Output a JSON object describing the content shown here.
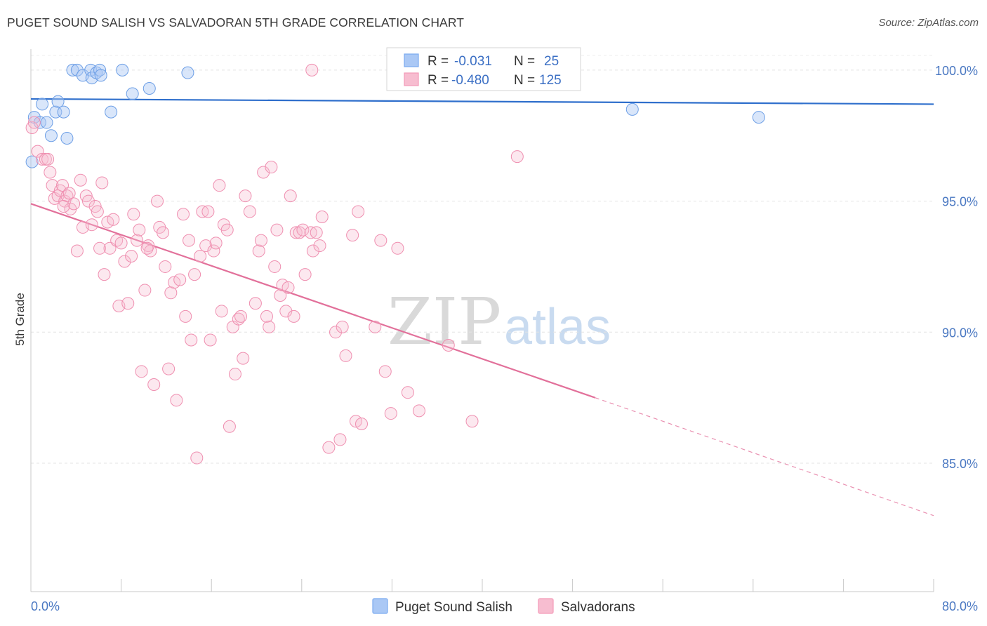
{
  "title": "PUGET SOUND SALISH VS SALVADORAN 5TH GRADE CORRELATION CHART",
  "source": "Source: ZipAtlas.com",
  "watermark": {
    "left": "ZIP",
    "right": "atlas"
  },
  "legend_top": {
    "rows": [
      {
        "r_label": "R =",
        "r_value": "-0.031",
        "n_label": "N =",
        "n_value": "25",
        "color": "#7aaaf0"
      },
      {
        "r_label": "R =",
        "r_value": "-0.480",
        "n_label": "N =",
        "n_value": "125",
        "color": "#f49ab8"
      }
    ]
  },
  "legend_bottom": [
    {
      "label": "Puget Sound Salish",
      "color": "#aac8f5"
    },
    {
      "label": "Salvadorans",
      "color": "#f7bdd0"
    }
  ],
  "chart_data": {
    "type": "scatter",
    "xlabel": "",
    "ylabel": "5th Grade",
    "xlim": [
      0,
      80
    ],
    "ylim": [
      80.1,
      100.8
    ],
    "x_tick_labels": [
      "0.0%",
      "80.0%"
    ],
    "y_ticks": [
      85,
      90,
      95,
      100
    ],
    "y_tick_labels": [
      "85.0%",
      "90.0%",
      "95.0%",
      "100.0%"
    ],
    "grid": true,
    "series": [
      {
        "name": "Puget Sound Salish",
        "color": "#7aaaf0",
        "points": [
          [
            0.1,
            96.5
          ],
          [
            0.3,
            98.2
          ],
          [
            0.8,
            98.0
          ],
          [
            1.0,
            98.7
          ],
          [
            1.4,
            98.0
          ],
          [
            1.8,
            97.5
          ],
          [
            2.2,
            98.4
          ],
          [
            2.4,
            98.8
          ],
          [
            2.9,
            98.4
          ],
          [
            3.2,
            97.4
          ],
          [
            3.7,
            100.0
          ],
          [
            4.1,
            100.0
          ],
          [
            4.6,
            99.8
          ],
          [
            5.3,
            100.0
          ],
          [
            5.4,
            99.7
          ],
          [
            5.8,
            99.9
          ],
          [
            6.1,
            100.0
          ],
          [
            6.2,
            99.8
          ],
          [
            7.1,
            98.4
          ],
          [
            8.1,
            100.0
          ],
          [
            9.0,
            99.1
          ],
          [
            10.5,
            99.3
          ],
          [
            13.9,
            99.9
          ],
          [
            53.3,
            98.5
          ],
          [
            64.5,
            98.2
          ]
        ],
        "trend": {
          "x": [
            0,
            80
          ],
          "y": [
            98.9,
            98.7
          ]
        }
      },
      {
        "name": "Salvadorans",
        "color": "#f07aa2",
        "points": [
          [
            0.1,
            97.8
          ],
          [
            0.3,
            98.0
          ],
          [
            0.6,
            96.9
          ],
          [
            1.0,
            96.6
          ],
          [
            1.3,
            96.6
          ],
          [
            1.7,
            96.1
          ],
          [
            1.9,
            95.6
          ],
          [
            2.1,
            95.1
          ],
          [
            2.4,
            95.2
          ],
          [
            2.6,
            95.4
          ],
          [
            2.8,
            95.6
          ],
          [
            3.0,
            95.0
          ],
          [
            3.2,
            95.2
          ],
          [
            3.4,
            95.3
          ],
          [
            3.5,
            94.7
          ],
          [
            3.8,
            94.9
          ],
          [
            4.1,
            93.1
          ],
          [
            4.4,
            95.8
          ],
          [
            4.6,
            94.0
          ],
          [
            4.9,
            95.2
          ],
          [
            5.1,
            95.0
          ],
          [
            5.4,
            94.1
          ],
          [
            5.7,
            94.8
          ],
          [
            5.9,
            94.6
          ],
          [
            6.1,
            93.2
          ],
          [
            6.3,
            95.7
          ],
          [
            6.5,
            92.2
          ],
          [
            6.8,
            94.2
          ],
          [
            7.0,
            93.2
          ],
          [
            7.3,
            94.3
          ],
          [
            7.6,
            93.5
          ],
          [
            7.8,
            91.0
          ],
          [
            8.0,
            93.4
          ],
          [
            8.3,
            92.7
          ],
          [
            8.6,
            91.1
          ],
          [
            8.9,
            92.9
          ],
          [
            9.1,
            94.5
          ],
          [
            9.4,
            93.5
          ],
          [
            9.6,
            93.9
          ],
          [
            9.8,
            88.5
          ],
          [
            10.1,
            91.6
          ],
          [
            10.4,
            93.3
          ],
          [
            10.6,
            93.1
          ],
          [
            10.9,
            88.0
          ],
          [
            11.2,
            95.0
          ],
          [
            11.4,
            94.0
          ],
          [
            11.7,
            93.8
          ],
          [
            11.9,
            92.5
          ],
          [
            12.2,
            88.6
          ],
          [
            12.4,
            91.5
          ],
          [
            12.7,
            91.9
          ],
          [
            12.9,
            87.4
          ],
          [
            13.2,
            92.0
          ],
          [
            13.5,
            94.5
          ],
          [
            13.7,
            90.6
          ],
          [
            14.0,
            93.5
          ],
          [
            14.2,
            89.7
          ],
          [
            14.5,
            92.2
          ],
          [
            14.7,
            85.2
          ],
          [
            15.0,
            92.9
          ],
          [
            15.2,
            94.6
          ],
          [
            15.5,
            93.3
          ],
          [
            15.7,
            94.6
          ],
          [
            15.9,
            89.7
          ],
          [
            16.2,
            93.1
          ],
          [
            16.4,
            93.4
          ],
          [
            16.7,
            95.6
          ],
          [
            16.9,
            90.8
          ],
          [
            17.1,
            94.1
          ],
          [
            17.4,
            93.9
          ],
          [
            17.6,
            86.4
          ],
          [
            17.9,
            90.2
          ],
          [
            18.1,
            88.4
          ],
          [
            18.4,
            90.5
          ],
          [
            18.6,
            90.6
          ],
          [
            18.8,
            89.0
          ],
          [
            19.0,
            95.2
          ],
          [
            19.4,
            94.6
          ],
          [
            19.9,
            91.1
          ],
          [
            20.2,
            93.1
          ],
          [
            20.4,
            93.5
          ],
          [
            20.6,
            96.1
          ],
          [
            20.9,
            90.6
          ],
          [
            21.1,
            90.2
          ],
          [
            21.3,
            96.3
          ],
          [
            21.6,
            92.5
          ],
          [
            21.8,
            93.9
          ],
          [
            22.1,
            91.4
          ],
          [
            22.3,
            91.8
          ],
          [
            22.6,
            90.8
          ],
          [
            22.8,
            91.7
          ],
          [
            23.0,
            95.2
          ],
          [
            23.3,
            90.6
          ],
          [
            23.5,
            93.8
          ],
          [
            23.8,
            93.8
          ],
          [
            24.1,
            93.9
          ],
          [
            24.3,
            92.2
          ],
          [
            24.8,
            93.8
          ],
          [
            25.0,
            93.1
          ],
          [
            25.3,
            93.8
          ],
          [
            25.6,
            93.3
          ],
          [
            25.8,
            94.4
          ],
          [
            26.4,
            85.6
          ],
          [
            27.0,
            90.0
          ],
          [
            27.4,
            85.9
          ],
          [
            27.6,
            90.2
          ],
          [
            27.9,
            89.1
          ],
          [
            28.5,
            93.7
          ],
          [
            28.8,
            86.6
          ],
          [
            29.0,
            94.6
          ],
          [
            29.3,
            86.5
          ],
          [
            30.5,
            90.2
          ],
          [
            31.0,
            93.5
          ],
          [
            31.4,
            88.5
          ],
          [
            31.9,
            86.9
          ],
          [
            32.5,
            93.2
          ],
          [
            33.4,
            87.7
          ],
          [
            34.4,
            87.0
          ],
          [
            37.0,
            89.5
          ],
          [
            39.1,
            86.6
          ],
          [
            43.1,
            96.7
          ],
          [
            1.5,
            96.6
          ],
          [
            2.9,
            94.8
          ],
          [
            10.3,
            93.2
          ],
          [
            24.9,
            100.0
          ]
        ],
        "trend": {
          "x": [
            0,
            50
          ],
          "y": [
            94.9,
            87.5
          ]
        },
        "trend_extension": {
          "x": [
            50,
            80
          ],
          "y": [
            87.5,
            83.0
          ]
        }
      }
    ]
  }
}
